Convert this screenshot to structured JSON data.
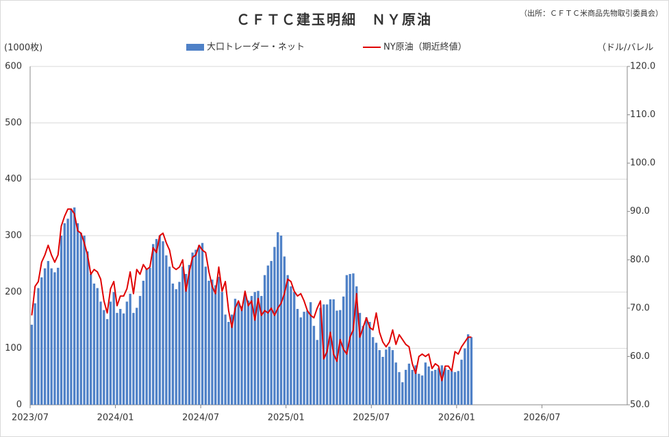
{
  "chart_data": {
    "type": "bar-line",
    "title": "ＣＦＴＣ建玉明細　ＮＹ原油",
    "source": "（出所：ＣＦＴＣ米商品先物取引委員会）",
    "y_label": "(1000枚)",
    "y2_label": "（ドル/バレル",
    "categories": [
      "2023/07",
      null,
      null,
      null,
      null,
      null,
      null,
      null,
      null,
      null,
      null,
      null,
      null,
      null,
      null,
      null,
      null,
      null,
      null,
      null,
      null,
      null,
      null,
      null,
      null,
      null,
      "2024/01",
      null,
      null,
      null,
      null,
      null,
      null,
      null,
      null,
      null,
      null,
      null,
      null,
      null,
      null,
      null,
      null,
      null,
      null,
      null,
      null,
      null,
      null,
      null,
      null,
      null,
      "2024/07",
      null,
      null,
      null,
      null,
      null,
      null,
      null,
      null,
      null,
      null,
      null,
      null,
      null,
      null,
      null,
      null,
      null,
      null,
      null,
      null,
      null,
      null,
      null,
      null,
      null,
      "2025/01",
      null,
      null,
      null,
      null,
      null,
      null,
      null,
      null,
      null,
      null,
      null,
      null,
      null,
      null,
      null,
      null,
      null,
      null,
      null,
      null,
      null,
      null,
      null,
      null,
      null,
      "2025/07",
      null,
      null,
      null,
      null,
      null,
      null,
      null,
      null,
      null,
      null,
      null,
      null,
      null,
      null,
      null,
      null,
      null,
      null,
      null,
      null,
      null,
      null,
      null,
      null,
      null,
      "2026/01",
      null,
      null,
      null,
      null,
      null,
      null,
      null,
      null,
      null,
      null,
      null,
      null,
      null,
      null,
      null,
      null,
      null,
      null,
      null,
      null,
      null,
      null,
      null,
      null,
      null,
      "2026/07",
      null,
      null,
      null,
      null,
      null,
      null,
      null,
      null,
      null,
      null,
      null,
      null,
      null,
      null,
      null,
      null,
      null,
      null,
      null,
      null,
      null,
      null,
      null,
      null,
      null
    ],
    "series": [
      {
        "name": "大口トレーダー・ネット",
        "color": "#4f81c7",
        "kind": "bar",
        "values": [
          142,
          180,
          207,
          226,
          242,
          255,
          242,
          235,
          243,
          300,
          322,
          330,
          348,
          350,
          322,
          305,
          300,
          272,
          232,
          215,
          207,
          183,
          168,
          152,
          183,
          200,
          163,
          170,
          162,
          183,
          197,
          163,
          172,
          193,
          220,
          240,
          243,
          285,
          294,
          300,
          290,
          265,
          245,
          215,
          205,
          218,
          245,
          232,
          248,
          270,
          275,
          283,
          287,
          245,
          220,
          222,
          212,
          227,
          200,
          160,
          147,
          160,
          188,
          180,
          175,
          197,
          185,
          193,
          200,
          202,
          193,
          230,
          247,
          255,
          280,
          306,
          300,
          263,
          230,
          210,
          200,
          170,
          155,
          165,
          167,
          182,
          140,
          115,
          172,
          178,
          178,
          187,
          187,
          167,
          168,
          192,
          230,
          232,
          233,
          210,
          163,
          140,
          155,
          147,
          120,
          110,
          97,
          85,
          98,
          103,
          97,
          75,
          58,
          40,
          62,
          73,
          62,
          70,
          55,
          52,
          75,
          68,
          60,
          62,
          65,
          70,
          65,
          62,
          60,
          58,
          60,
          80,
          100,
          125,
          120,
          null,
          null,
          null,
          null,
          null,
          null,
          null,
          null,
          null,
          null,
          null,
          null,
          null,
          null,
          null,
          null,
          null,
          null,
          null,
          null,
          null,
          null,
          null,
          null,
          null,
          null,
          null,
          null,
          null,
          null,
          null,
          null,
          null,
          null,
          null,
          null,
          null,
          null,
          null,
          null,
          null,
          null,
          null,
          null,
          null,
          null,
          null
        ]
      },
      {
        "name": "NY原油（期近終値）",
        "color": "#e00000",
        "kind": "line",
        "axis": "y2",
        "values": [
          68.5,
          74.5,
          75.5,
          79.5,
          81,
          83,
          81,
          79.5,
          81,
          87,
          89,
          90.5,
          90.5,
          89.5,
          86,
          85.5,
          83.5,
          81,
          77,
          78,
          77.5,
          76,
          71.5,
          69,
          74,
          75.5,
          70.5,
          72.5,
          72.5,
          74,
          77.5,
          73,
          78,
          77,
          79,
          78,
          78.5,
          82.5,
          81.5,
          85,
          85.5,
          83.5,
          82,
          78.5,
          78,
          78.5,
          80,
          73.5,
          77.5,
          80.5,
          81,
          83,
          82,
          81.5,
          77.5,
          74.5,
          73,
          78.5,
          73.5,
          75.5,
          69.5,
          66,
          70,
          71.5,
          69.5,
          73.5,
          70.5,
          71.5,
          67.5,
          72,
          68.5,
          69.5,
          69,
          70,
          68.5,
          70,
          71,
          73,
          76,
          75.5,
          73.5,
          72.5,
          73,
          71.5,
          69.5,
          68.5,
          68,
          70,
          71.5,
          59.5,
          61,
          65,
          60.5,
          59,
          63.5,
          61.5,
          60.5,
          64,
          65.5,
          73,
          64,
          66,
          68,
          66,
          65.5,
          69,
          65,
          63,
          62,
          63,
          65.5,
          62.5,
          64.5,
          63.5,
          62.5,
          62,
          58.5,
          56.5,
          60,
          60.5,
          60,
          60.5,
          57.5,
          58.5,
          58,
          55,
          58,
          58,
          57,
          61,
          60.5,
          62,
          63,
          64,
          64,
          null,
          null,
          null,
          null,
          null,
          null,
          null,
          null,
          null,
          null,
          null,
          null,
          null,
          null,
          null,
          null,
          null,
          null,
          null,
          null,
          null,
          null,
          null,
          null,
          null,
          null,
          null,
          null,
          null,
          null,
          null,
          null,
          null,
          null,
          null,
          null,
          null,
          null,
          null,
          null,
          null,
          null,
          null,
          null,
          null,
          null,
          null
        ]
      }
    ],
    "ylim": [
      0,
      600
    ],
    "yticks": [
      0,
      100,
      200,
      300,
      400,
      500,
      600
    ],
    "y2lim": [
      50,
      120
    ],
    "y2ticks": [
      {
        "value": 50,
        "label": "50.0"
      },
      {
        "value": 60,
        "label": "60.0"
      },
      {
        "value": 70,
        "label": "70.0"
      },
      {
        "value": 80,
        "label": "80.0"
      },
      {
        "value": 90,
        "label": "90.0"
      },
      {
        "value": 100,
        "label": "100.0"
      },
      {
        "value": 110,
        "label": "110.0"
      },
      {
        "value": 120,
        "label": "120.0"
      }
    ],
    "grid": true,
    "legend": "top"
  }
}
